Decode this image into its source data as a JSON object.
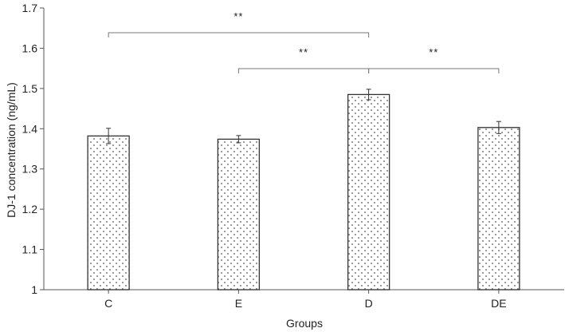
{
  "chart_data": {
    "type": "bar",
    "title": "",
    "xlabel": "Groups",
    "ylabel": "DJ-1 concentration (ng/mL)",
    "categories": [
      "C",
      "E",
      "D",
      "DE"
    ],
    "values": [
      1.382,
      1.374,
      1.485,
      1.403
    ],
    "errors": [
      0.019,
      0.009,
      0.013,
      0.015
    ],
    "ylim": [
      1.0,
      1.7
    ],
    "yticks": [
      "1",
      "1.1",
      "1.2",
      "1.3",
      "1.4",
      "1.5",
      "1.6",
      "1.7"
    ],
    "grid": false,
    "bar_fill": "dotted pattern",
    "significance": [
      {
        "from": "C",
        "to": "D",
        "label": "**"
      },
      {
        "from": "E",
        "to": "D",
        "label": "**"
      },
      {
        "from": "D",
        "to": "DE",
        "label": "**"
      }
    ]
  },
  "colors": {
    "bar_stroke": "#333333",
    "dot": "#555555",
    "axis": "#555555",
    "text": "#222222"
  }
}
